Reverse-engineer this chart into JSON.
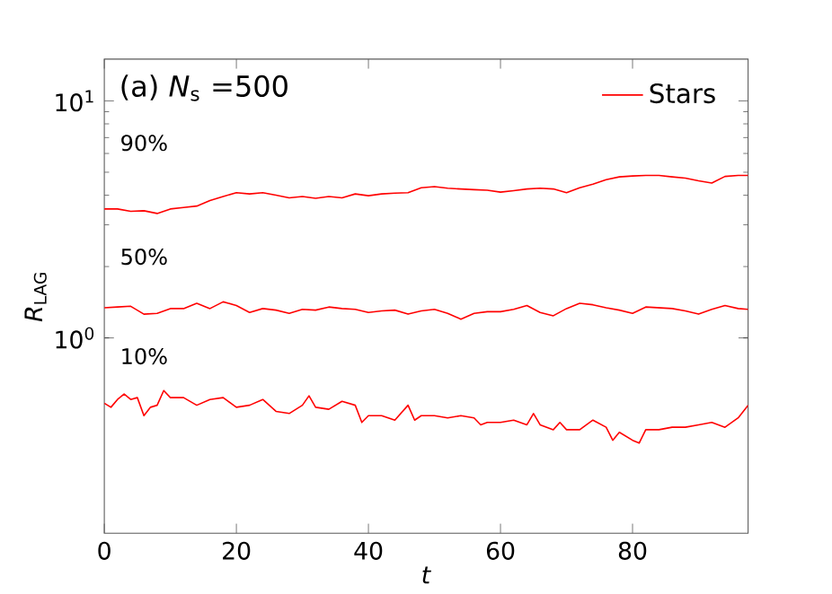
{
  "chart_data": {
    "type": "line",
    "xlabel": "*t*",
    "ylabel": "*R*$_{LAG}$",
    "log": "y",
    "legend": "top right",
    "grid": false,
    "marker": "none",
    "line_style": "solid",
    "xlim": [
      0,
      97.5
    ],
    "xticks": [
      0,
      20,
      40,
      60,
      80
    ],
    "ylim": [
      0.15,
      15
    ],
    "yticks": [
      {
        "value": 1,
        "label": "10$^{0}$"
      },
      {
        "value": 10,
        "label": "10$^{1}$"
      }
    ],
    "annotations": [
      "(a) *N*$_{s}$ =500",
      "90%",
      "50%",
      "10%"
    ],
    "series": [
      {
        "name": "Stars",
        "color": "#ff0000",
        "x": [
          0,
          2,
          4,
          6,
          8,
          10,
          12,
          14,
          16,
          18,
          20,
          22,
          24,
          26,
          28,
          30,
          32,
          34,
          36,
          38,
          40,
          42,
          44,
          46,
          48,
          50,
          52,
          54,
          56,
          58,
          60,
          62,
          64,
          66,
          68,
          70,
          72,
          74,
          76,
          78,
          80,
          82,
          84,
          86,
          88,
          90,
          92,
          94,
          96,
          97.5
        ],
        "values": [
          3.5,
          3.5,
          3.42,
          3.44,
          3.35,
          3.5,
          3.55,
          3.6,
          3.8,
          3.95,
          4.1,
          4.05,
          4.1,
          4.0,
          3.9,
          3.95,
          3.88,
          3.95,
          3.9,
          4.05,
          3.98,
          4.05,
          4.08,
          4.1,
          4.3,
          4.35,
          4.28,
          4.25,
          4.22,
          4.2,
          4.12,
          4.18,
          4.25,
          4.28,
          4.25,
          4.1,
          4.3,
          4.45,
          4.65,
          4.78,
          4.82,
          4.85,
          4.85,
          4.78,
          4.72,
          4.6,
          4.5,
          4.8,
          4.85,
          4.85
        ]
      },
      {
        "color": "#ff0000",
        "x": [
          0,
          2,
          4,
          6,
          8,
          10,
          12,
          14,
          16,
          18,
          20,
          22,
          24,
          26,
          28,
          30,
          32,
          34,
          36,
          38,
          40,
          42,
          44,
          46,
          48,
          50,
          52,
          54,
          56,
          58,
          60,
          62,
          64,
          66,
          68,
          70,
          72,
          74,
          76,
          78,
          80,
          82,
          84,
          86,
          88,
          90,
          92,
          94,
          96,
          97.5
        ],
        "values": [
          1.34,
          1.35,
          1.36,
          1.26,
          1.27,
          1.33,
          1.33,
          1.4,
          1.33,
          1.42,
          1.37,
          1.28,
          1.33,
          1.31,
          1.27,
          1.32,
          1.31,
          1.35,
          1.33,
          1.32,
          1.28,
          1.3,
          1.31,
          1.26,
          1.3,
          1.32,
          1.27,
          1.2,
          1.27,
          1.29,
          1.29,
          1.32,
          1.37,
          1.28,
          1.24,
          1.33,
          1.4,
          1.38,
          1.34,
          1.31,
          1.27,
          1.35,
          1.34,
          1.33,
          1.3,
          1.26,
          1.32,
          1.37,
          1.33,
          1.32
        ]
      },
      {
        "color": "#ff0000",
        "x": [
          0,
          1,
          2,
          3,
          4,
          5,
          6,
          7,
          8,
          9,
          10,
          12,
          14,
          16,
          18,
          20,
          22,
          24,
          26,
          28,
          30,
          31,
          32,
          34,
          36,
          38,
          39,
          40,
          42,
          44,
          46,
          47,
          48,
          50,
          52,
          54,
          56,
          57,
          58,
          60,
          62,
          64,
          65,
          66,
          68,
          69,
          70,
          72,
          74,
          76,
          77,
          78,
          80,
          81,
          82,
          84,
          86,
          88,
          90,
          92,
          94,
          96,
          97.5
        ],
        "values": [
          0.53,
          0.51,
          0.55,
          0.58,
          0.55,
          0.56,
          0.47,
          0.51,
          0.52,
          0.6,
          0.56,
          0.56,
          0.52,
          0.55,
          0.56,
          0.51,
          0.52,
          0.55,
          0.49,
          0.48,
          0.52,
          0.57,
          0.51,
          0.5,
          0.54,
          0.52,
          0.44,
          0.47,
          0.47,
          0.45,
          0.52,
          0.45,
          0.47,
          0.47,
          0.46,
          0.47,
          0.46,
          0.43,
          0.44,
          0.44,
          0.45,
          0.43,
          0.48,
          0.43,
          0.41,
          0.44,
          0.41,
          0.41,
          0.45,
          0.42,
          0.37,
          0.4,
          0.37,
          0.36,
          0.41,
          0.41,
          0.42,
          0.42,
          0.43,
          0.44,
          0.42,
          0.46,
          0.52
        ]
      }
    ]
  }
}
